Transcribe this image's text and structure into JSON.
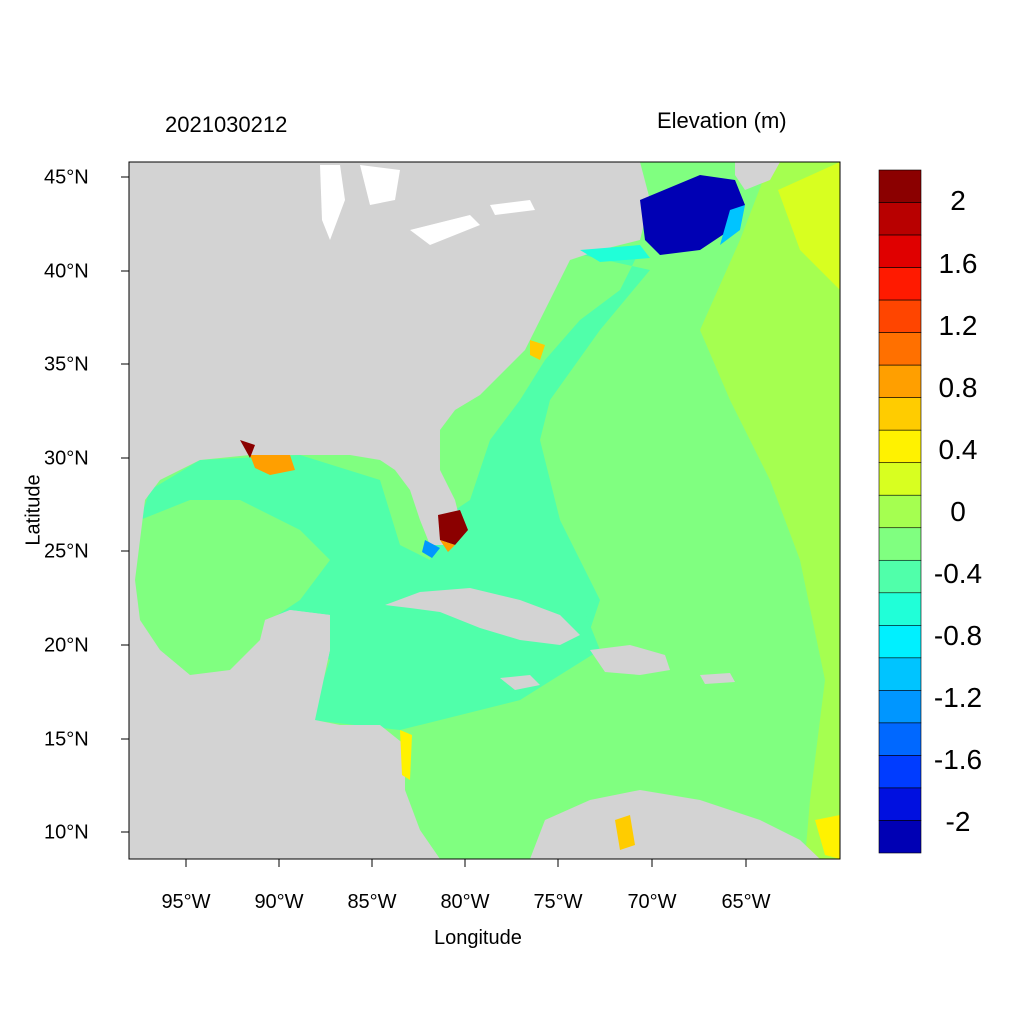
{
  "titles": {
    "left": "2021030212",
    "right": "Elevation (m)"
  },
  "axes": {
    "xlabel": "Longitude",
    "ylabel": "Latitude",
    "x_ticks": [
      "95°W",
      "90°W",
      "85°W",
      "80°W",
      "75°W",
      "70°W",
      "65°W"
    ],
    "y_ticks": [
      "45°N",
      "40°N",
      "35°N",
      "30°N",
      "25°N",
      "20°N",
      "15°N",
      "10°N"
    ]
  },
  "colorbar": {
    "labels": [
      "2",
      "1.6",
      "1.2",
      "0.8",
      "0.4",
      "0",
      "-0.4",
      "-0.8",
      "-1.2",
      "-1.6",
      "-2"
    ],
    "colors": [
      "#8b0000",
      "#b80000",
      "#e00000",
      "#ff1a00",
      "#ff4500",
      "#ff7000",
      "#ff9f00",
      "#ffcc00",
      "#fff200",
      "#d8ff20",
      "#a5ff50",
      "#80ff80",
      "#50ffaa",
      "#20ffd8",
      "#00f0ff",
      "#00c4ff",
      "#0096ff",
      "#0068ff",
      "#003cff",
      "#0010e0",
      "#0000b4"
    ]
  },
  "map": {
    "land_color": "#d3d3d3",
    "lakes_color": "#ffffff",
    "background_ocean": "#80ff80"
  }
}
